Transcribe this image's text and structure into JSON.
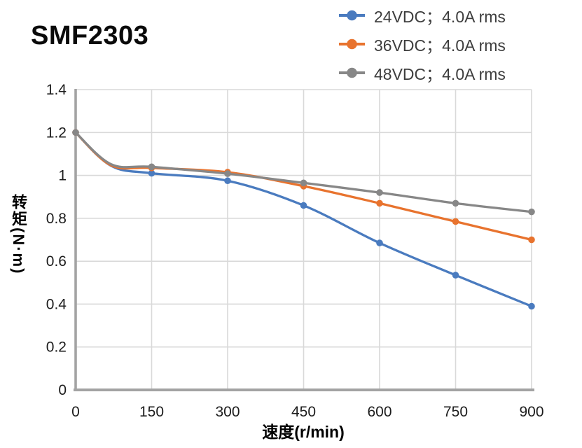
{
  "title": "SMF2303",
  "legend": {
    "items": [
      {
        "label": "24VDC；4.0A rms",
        "color": "#4A7BBF"
      },
      {
        "label": "36VDC；4.0A rms",
        "color": "#E8732E"
      },
      {
        "label": "48VDC；4.0A rms",
        "color": "#878787"
      }
    ]
  },
  "chart_data": {
    "type": "line",
    "title": "SMF2303",
    "x": [
      0,
      150,
      300,
      450,
      600,
      750,
      900
    ],
    "series": [
      {
        "name": "24VDC；4.0A rms",
        "color": "#4A7BBF",
        "values": [
          1.2,
          1.01,
          0.975,
          0.86,
          0.685,
          0.535,
          0.39
        ]
      },
      {
        "name": "36VDC；4.0A rms",
        "color": "#E8732E",
        "values": [
          1.2,
          1.035,
          1.015,
          0.95,
          0.87,
          0.785,
          0.7
        ]
      },
      {
        "name": "48VDC；4.0A rms",
        "color": "#878787",
        "values": [
          1.2,
          1.04,
          1.008,
          0.965,
          0.92,
          0.87,
          0.83
        ]
      }
    ],
    "xlabel": "速度(r/min)",
    "ylabel": "转矩(N·m)",
    "xlim": [
      0,
      900
    ],
    "ylim": [
      0,
      1.4
    ],
    "x_ticks": [
      0,
      150,
      300,
      450,
      600,
      750,
      900
    ],
    "y_ticks": [
      0,
      0.2,
      0.4,
      0.6,
      0.8,
      1,
      1.2,
      1.4
    ],
    "grid": true,
    "line_style": "smoothed",
    "legend_position": "top-right",
    "colors": {
      "grid": "#D9D9D9",
      "axis": "#A3A3A3",
      "tick_text": "#1c1c1c"
    }
  }
}
